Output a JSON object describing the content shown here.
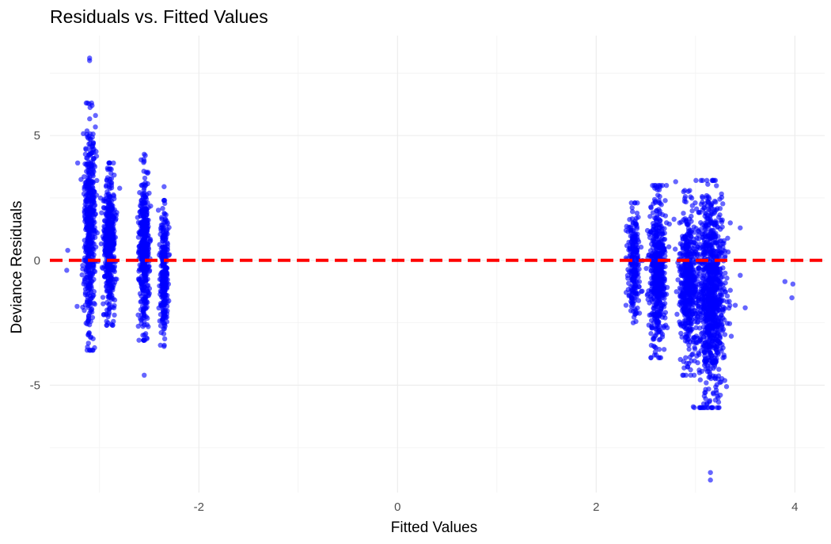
{
  "chart_data": {
    "type": "scatter",
    "title": "Residuals vs. Fitted Values",
    "xlabel": "Fitted Values",
    "ylabel": "Deviance Residuals",
    "xlim": [
      -3.5,
      4.3
    ],
    "ylim": [
      -9.3,
      9.0
    ],
    "x_ticks": [
      -2,
      0,
      2,
      4
    ],
    "x_tick_labels": [
      "-2",
      "0",
      "2",
      "4"
    ],
    "y_ticks": [
      -5,
      0,
      5
    ],
    "y_tick_labels": [
      "-5",
      "0",
      "5"
    ],
    "grid": true,
    "legend": "none",
    "point_color": "#0000ff",
    "point_opacity": 0.6,
    "reference_line": {
      "y": 0,
      "style": "dashed",
      "color": "#ff0000"
    },
    "clusters": [
      {
        "x": -3.1,
        "x_spread": 0.03,
        "y_min": -3.6,
        "y_max": 6.3,
        "n": 500
      },
      {
        "x": -2.9,
        "x_spread": 0.03,
        "y_min": -2.6,
        "y_max": 3.9,
        "n": 450
      },
      {
        "x": -2.55,
        "x_spread": 0.025,
        "y_min": -3.2,
        "y_max": 4.2,
        "n": 450
      },
      {
        "x": -2.35,
        "x_spread": 0.02,
        "y_min": -3.4,
        "y_max": 2.4,
        "n": 300
      },
      {
        "x": 2.38,
        "x_spread": 0.03,
        "y_min": -2.5,
        "y_max": 2.3,
        "n": 250
      },
      {
        "x": 2.62,
        "x_spread": 0.04,
        "y_min": -3.9,
        "y_max": 3.0,
        "n": 550
      },
      {
        "x": 2.92,
        "x_spread": 0.04,
        "y_min": -4.6,
        "y_max": 2.8,
        "n": 500
      },
      {
        "x": 3.15,
        "x_spread": 0.07,
        "y_min": -5.9,
        "y_max": 3.2,
        "n": 1000
      }
    ],
    "points": [
      [
        -3.1,
        8.1
      ],
      [
        -3.1,
        8.0
      ],
      [
        -3.08,
        6.3
      ],
      [
        -3.22,
        3.9
      ],
      [
        -3.32,
        0.4
      ],
      [
        -3.33,
        -0.4
      ],
      [
        -3.1,
        -3.6
      ],
      [
        -3.05,
        -3.5
      ],
      [
        -2.9,
        3.9
      ],
      [
        -2.55,
        4.25
      ],
      [
        -2.55,
        -4.6
      ],
      [
        -2.35,
        2.95
      ],
      [
        -2.35,
        -3.45
      ],
      [
        2.3,
        0.1
      ],
      [
        2.3,
        -1.8
      ],
      [
        2.6,
        3.0
      ],
      [
        2.65,
        -3.9
      ],
      [
        2.8,
        3.15
      ],
      [
        2.88,
        2.75
      ],
      [
        2.87,
        -4.6
      ],
      [
        2.9,
        -3.9
      ],
      [
        3.15,
        -8.5
      ],
      [
        3.15,
        -8.8
      ],
      [
        3.05,
        -5.9
      ],
      [
        3.2,
        3.2
      ],
      [
        3.35,
        1.5
      ],
      [
        3.45,
        1.3
      ],
      [
        3.5,
        -1.9
      ],
      [
        3.4,
        -1.8
      ],
      [
        3.35,
        -1.2
      ],
      [
        3.45,
        -0.6
      ],
      [
        3.9,
        -0.85
      ],
      [
        3.98,
        -0.95
      ],
      [
        3.97,
        -1.5
      ],
      [
        3.25,
        -5.4
      ],
      [
        3.2,
        -5.6
      ],
      [
        2.98,
        -3.1
      ],
      [
        2.6,
        -3.5
      ],
      [
        2.7,
        -2.6
      ],
      [
        2.4,
        -2.45
      ]
    ]
  }
}
